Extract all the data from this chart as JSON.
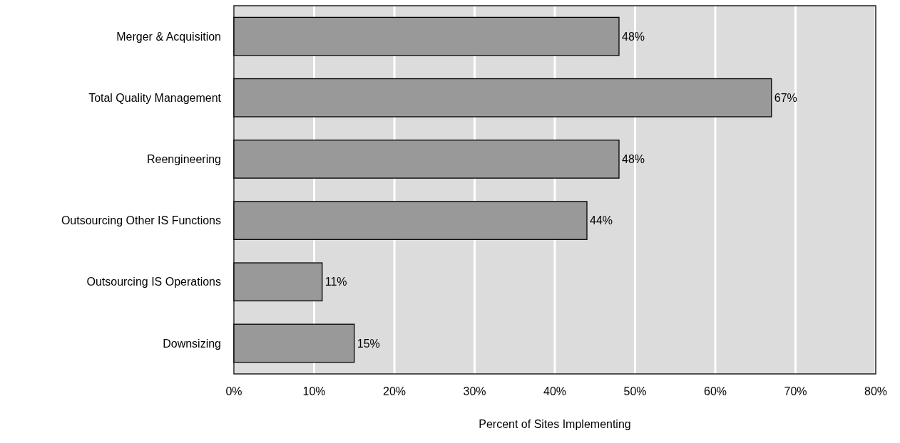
{
  "chart_data": {
    "type": "bar",
    "orientation": "horizontal",
    "xlabel": "Percent of Sites Implementing",
    "categories": [
      "Merger & Acquisition",
      "Total Quality Management",
      "Reengineering",
      "Outsourcing Other IS Functions",
      "Outsourcing IS Operations",
      "Downsizing"
    ],
    "values": [
      48,
      67,
      48,
      44,
      11,
      15
    ],
    "value_labels": [
      "48%",
      "67%",
      "48%",
      "44%",
      "11%",
      "15%"
    ],
    "color": "#999999",
    "xlim": [
      0,
      80
    ],
    "xticks": [
      {
        "value": 0,
        "label": "0%"
      },
      {
        "value": 10,
        "label": "10%"
      },
      {
        "value": 20,
        "label": "20%"
      },
      {
        "value": 30,
        "label": "30%"
      },
      {
        "value": 40,
        "label": "40%"
      },
      {
        "value": 50,
        "label": "50%"
      },
      {
        "value": 60,
        "label": "60%"
      },
      {
        "value": 70,
        "label": "70%"
      },
      {
        "value": 80,
        "label": "80%"
      }
    ],
    "grid": "x"
  }
}
